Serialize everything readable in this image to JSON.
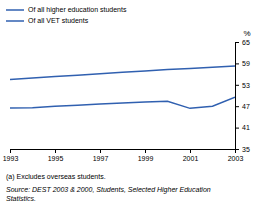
{
  "chart_data": {
    "type": "line",
    "x": [
      1993,
      1994,
      1995,
      1996,
      1997,
      1998,
      1999,
      2000,
      2001,
      2002,
      2003
    ],
    "series": [
      {
        "name": "Of all higher education students",
        "color": "#3060b0",
        "values": [
          54.5,
          54.9,
          55.3,
          55.7,
          56.1,
          56.5,
          56.9,
          57.3,
          57.6,
          57.9,
          58.3
        ]
      },
      {
        "name": "Of all VET students",
        "color": "#3060b0",
        "values": [
          46.5,
          46.6,
          47.0,
          47.3,
          47.6,
          47.9,
          48.2,
          48.4,
          46.4,
          47.0,
          49.5
        ]
      }
    ],
    "xlim": [
      1993,
      2003
    ],
    "xticks": [
      1993,
      1995,
      1997,
      1999,
      2001,
      2003
    ],
    "ylim": [
      35,
      65
    ],
    "yticks": [
      35,
      41,
      47,
      53,
      59,
      65
    ],
    "ylabel": "%",
    "legend": "top-left",
    "grid": false,
    "annotations": [
      "(a) Excludes overseas students.",
      "Source: DEST 2003 & 2000, Students, Selected Higher Education\nStatistics."
    ]
  }
}
